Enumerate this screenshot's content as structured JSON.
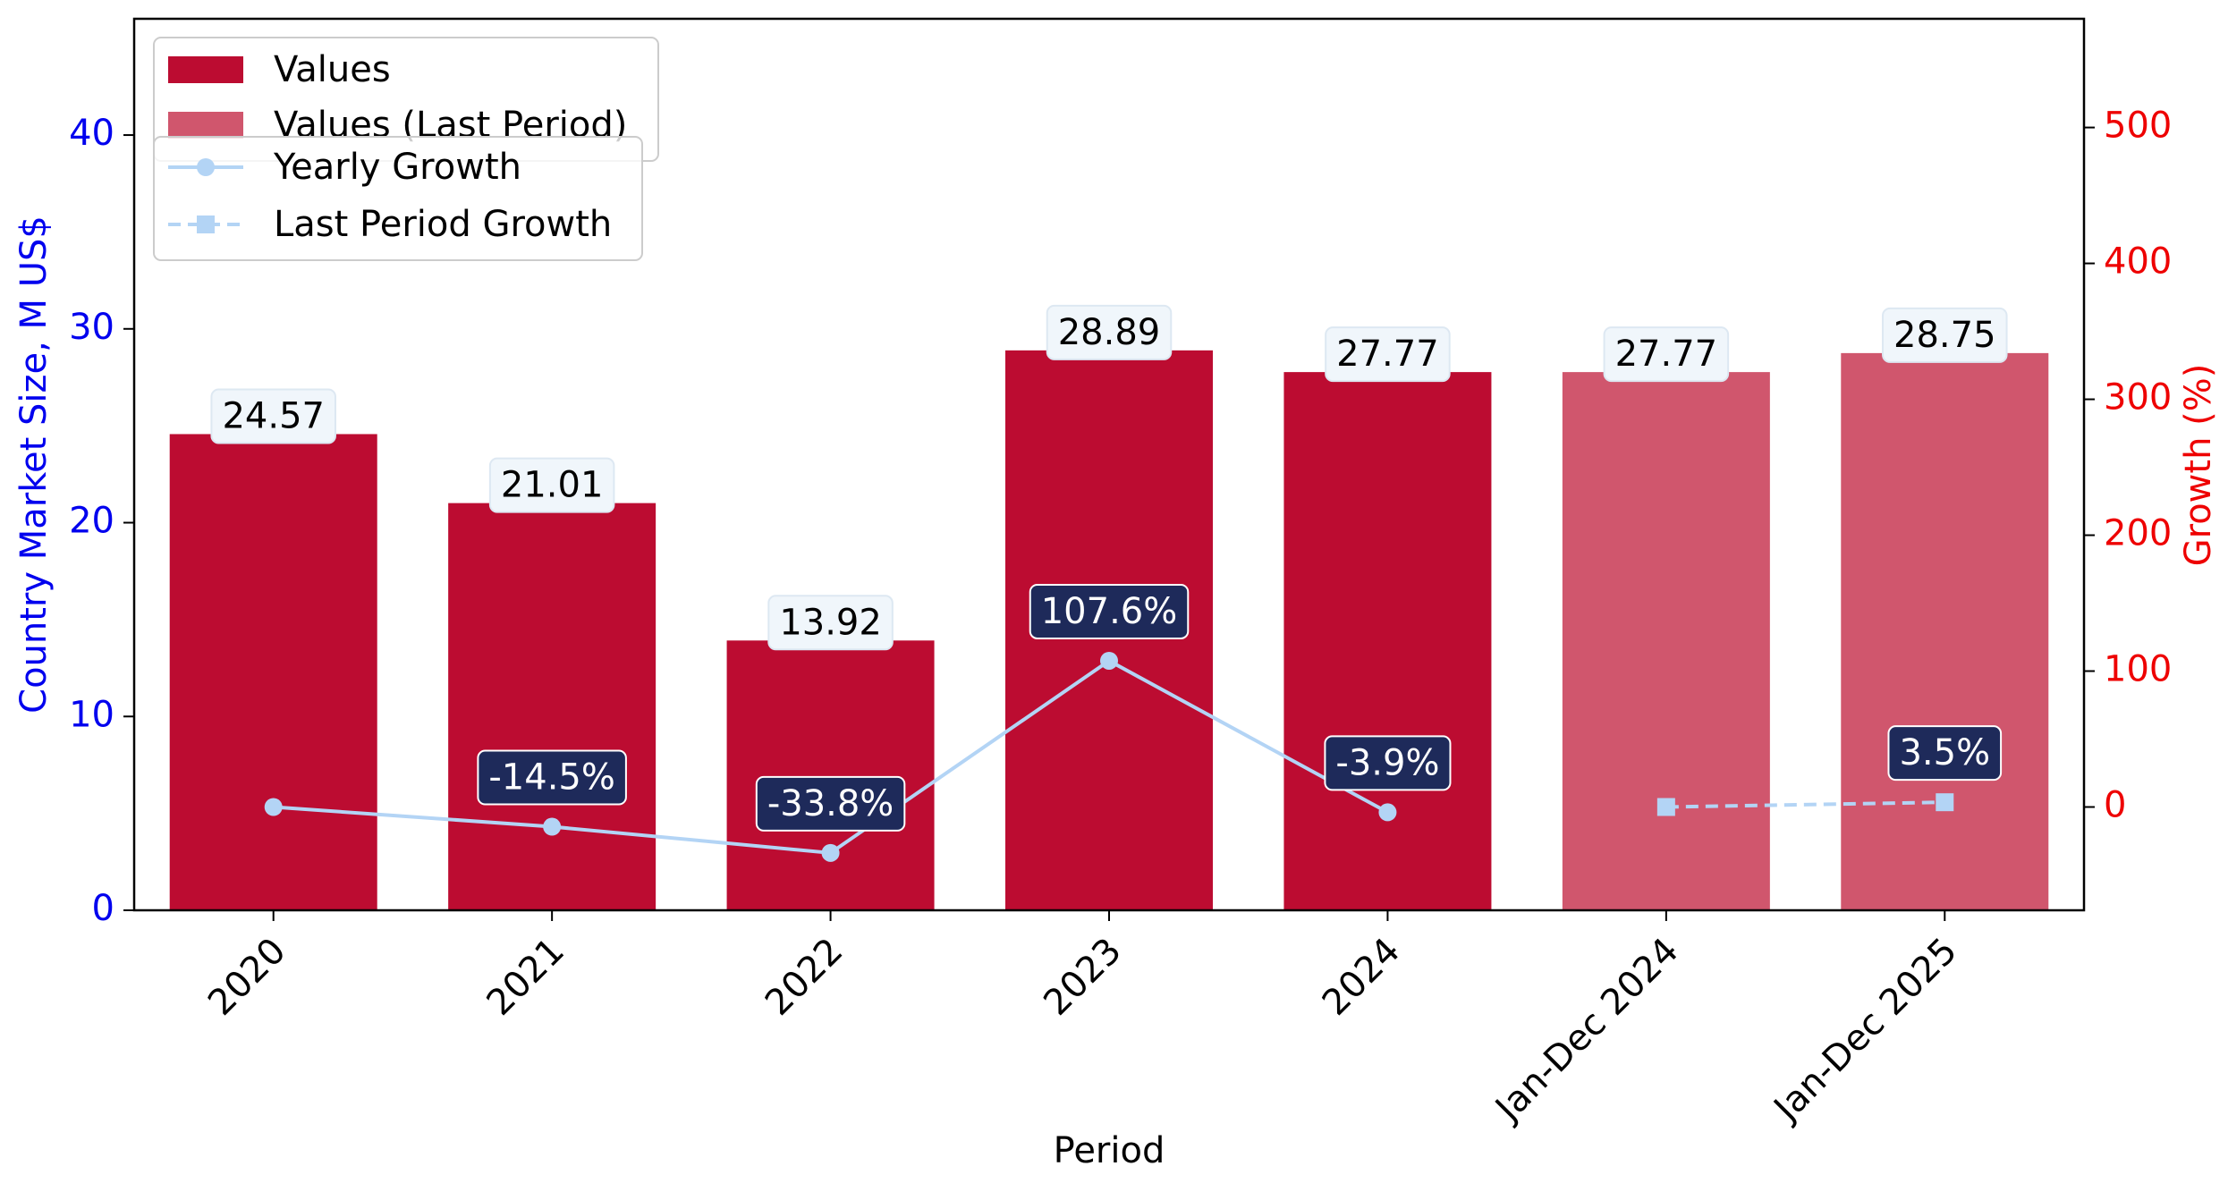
{
  "chart_data": {
    "type": "bar",
    "categories": [
      "2020",
      "2021",
      "2022",
      "2023",
      "2024",
      "Jan-Dec 2024",
      "Jan-Dec 2025"
    ],
    "series": [
      {
        "name": "Values",
        "kind": "bar",
        "axis": "left",
        "color": "#bc0c31",
        "values": [
          24.57,
          21.01,
          13.92,
          28.89,
          27.77,
          null,
          null
        ],
        "labels": [
          "24.57",
          "21.01",
          "13.92",
          "28.89",
          "27.77",
          "",
          ""
        ]
      },
      {
        "name": "Values (Last Period)",
        "kind": "bar",
        "axis": "left",
        "color": "#d0566d",
        "values": [
          null,
          null,
          null,
          null,
          null,
          27.77,
          28.75
        ],
        "labels": [
          "",
          "",
          "",
          "",
          "",
          "27.77",
          "28.75"
        ]
      },
      {
        "name": "Yearly Growth",
        "kind": "line",
        "axis": "right",
        "color": "#b3d4f5",
        "marker": "circle",
        "linestyle": "solid",
        "values": [
          0,
          -14.5,
          -33.8,
          107.6,
          -3.9,
          null,
          null
        ],
        "labels": [
          "",
          "-14.5%",
          "-33.8%",
          "107.6%",
          "-3.9%",
          "",
          ""
        ]
      },
      {
        "name": "Last Period Growth",
        "kind": "line",
        "axis": "right",
        "color": "#b3d4f5",
        "marker": "square",
        "linestyle": "dashed",
        "values": [
          null,
          null,
          null,
          null,
          null,
          0,
          3.5
        ],
        "labels": [
          "",
          "",
          "",
          "",
          "",
          "",
          "3.5%"
        ]
      }
    ],
    "xlabel": "Period",
    "ylabel": "Country Market Size, M US$",
    "y2label": "Growth (%)",
    "ylim": [
      0,
      46
    ],
    "y2lim": [
      -76,
      580
    ],
    "yticks": [
      "0",
      "10",
      "20",
      "30",
      "40"
    ],
    "y2ticks": [
      "0",
      "100",
      "200",
      "300",
      "400",
      "500"
    ],
    "ytick_values": [
      0,
      10,
      20,
      30,
      40
    ],
    "y2tick_values": [
      0,
      100,
      200,
      300,
      400,
      500
    ],
    "left_axis_color": "#0000ee",
    "right_axis_color": "#ee0000",
    "value_label_bg": "#f0f6fb",
    "growth_label_bg": "#1e2a5a",
    "legend_placement": "top-left",
    "grid": false
  }
}
